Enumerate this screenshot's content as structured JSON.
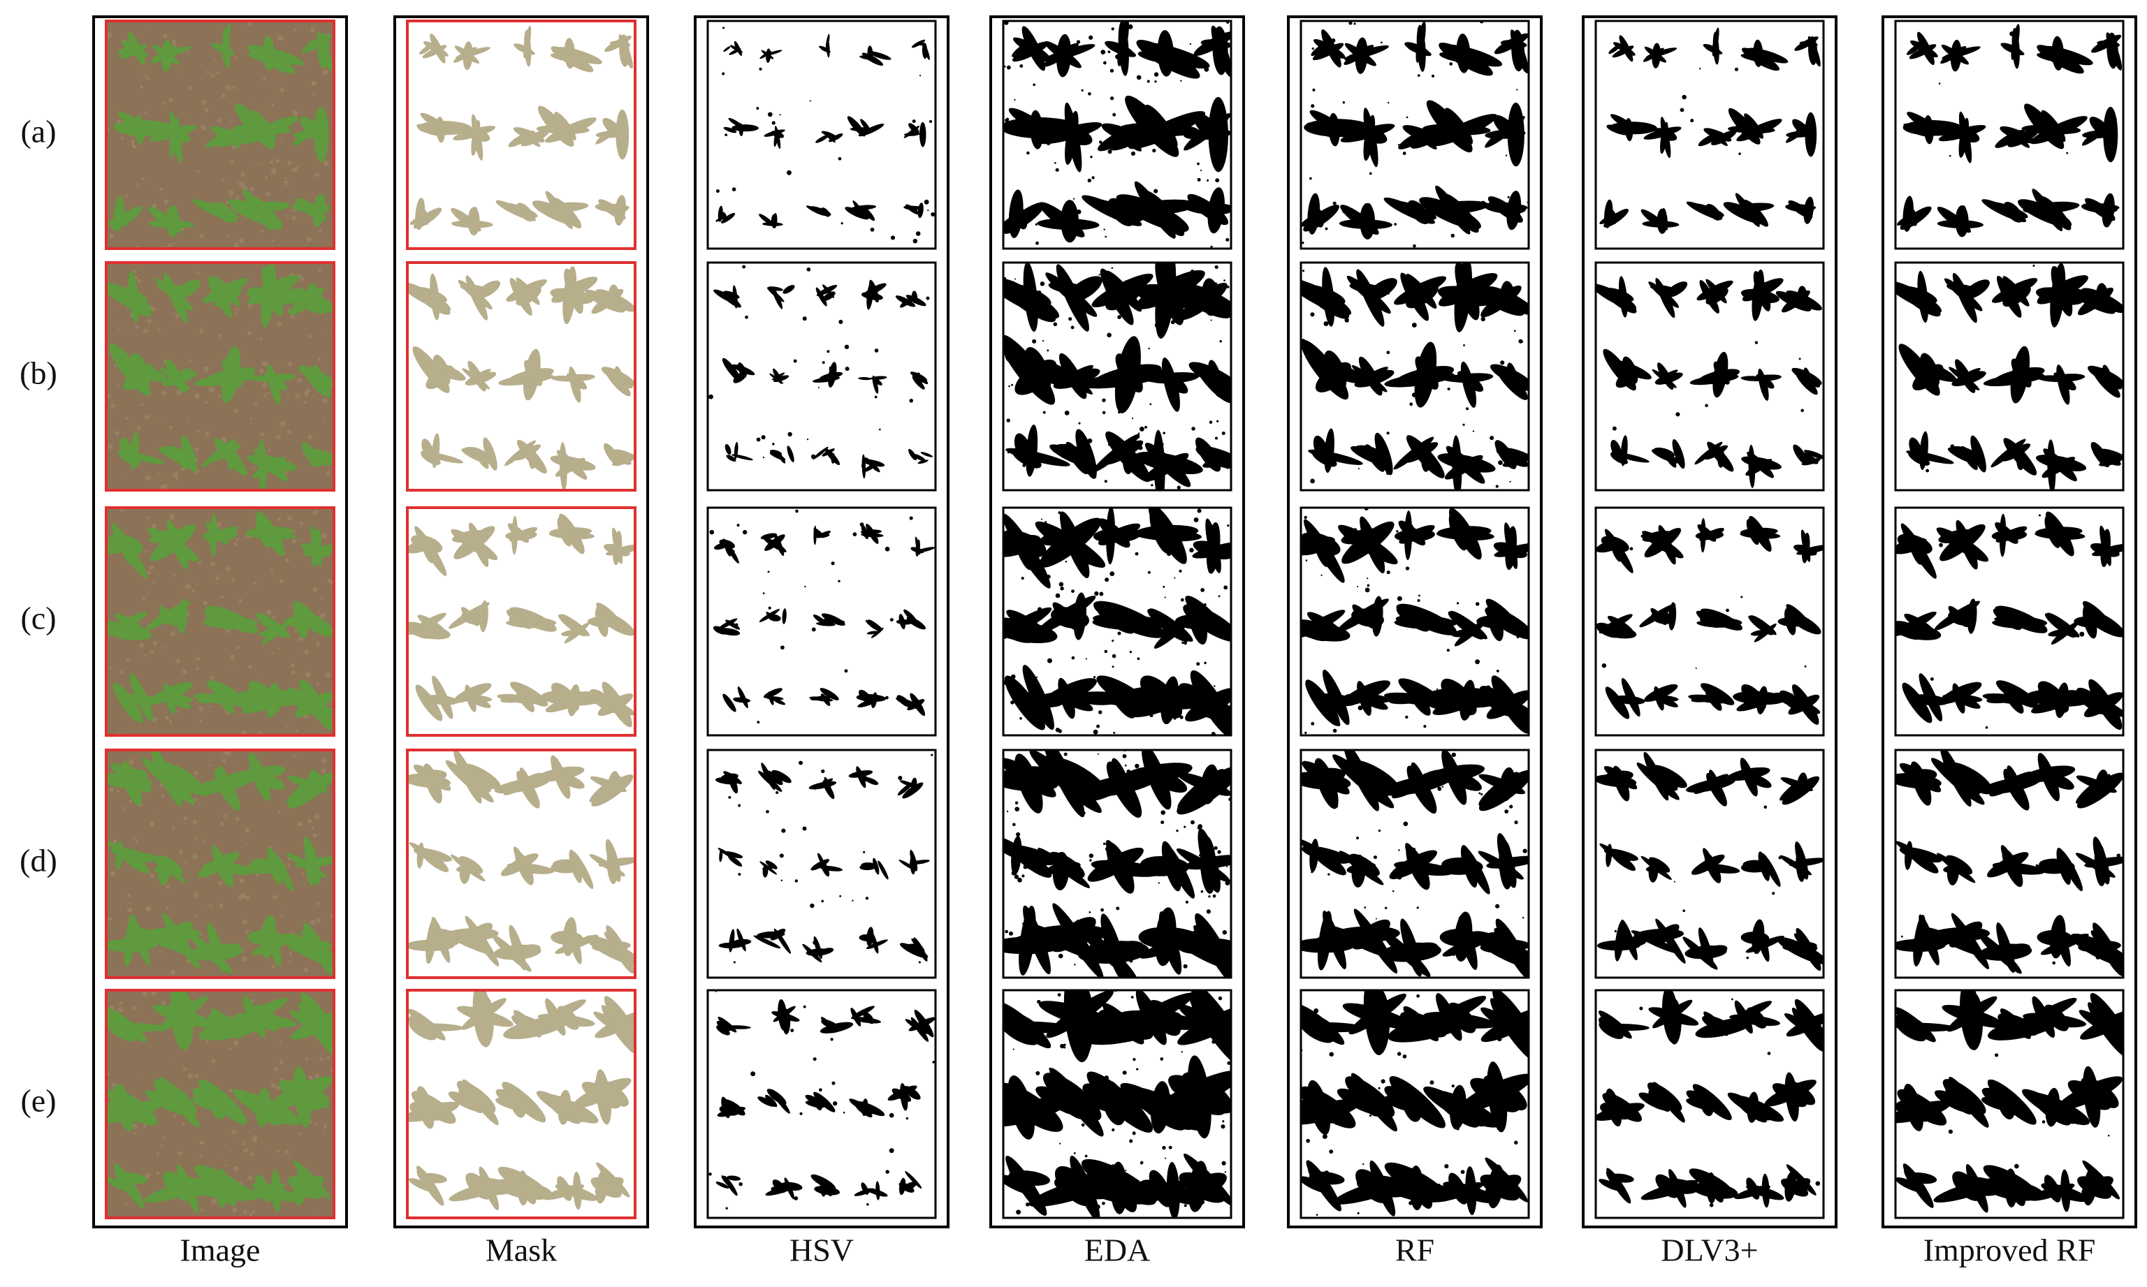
{
  "row_labels": [
    "(a)",
    "(b)",
    "(c)",
    "(d)",
    "(e)"
  ],
  "columns": [
    "Image",
    "Mask",
    "HSV",
    "EDA",
    "RF",
    "DLV3+",
    "Improved RF"
  ]
}
